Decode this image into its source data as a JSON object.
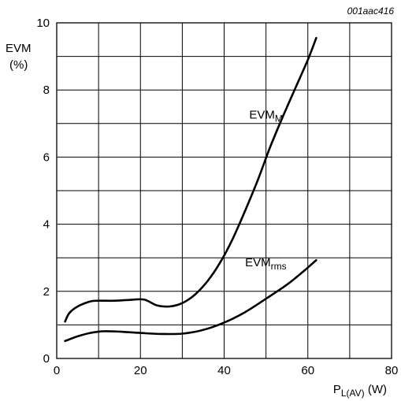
{
  "figure_code": "001aac416",
  "chart_data": {
    "type": "line",
    "xlabel": {
      "main": "P",
      "sub": "L(AV)",
      "unit": " (W)"
    },
    "ylabel": {
      "line1": "EVM",
      "line2": "(%)"
    },
    "xlim": [
      0,
      80
    ],
    "ylim": [
      0,
      10
    ],
    "x_ticks": [
      0,
      20,
      40,
      60,
      80
    ],
    "y_ticks": [
      0,
      2,
      4,
      6,
      8,
      10
    ],
    "x_grid_step": 10,
    "y_grid_step": 1,
    "grid": true,
    "series": [
      {
        "name": "EVM",
        "name_sub": "M",
        "points": [
          [
            2,
            1.1
          ],
          [
            3,
            1.35
          ],
          [
            5,
            1.55
          ],
          [
            8,
            1.7
          ],
          [
            10,
            1.72
          ],
          [
            14,
            1.72
          ],
          [
            18,
            1.75
          ],
          [
            21,
            1.75
          ],
          [
            24,
            1.58
          ],
          [
            27,
            1.55
          ],
          [
            30,
            1.65
          ],
          [
            33,
            1.9
          ],
          [
            36,
            2.3
          ],
          [
            39,
            2.85
          ],
          [
            42,
            3.55
          ],
          [
            45,
            4.4
          ],
          [
            48,
            5.3
          ],
          [
            51,
            6.3
          ],
          [
            54,
            7.2
          ],
          [
            57,
            8.05
          ],
          [
            60,
            8.9
          ],
          [
            62,
            9.55
          ]
        ]
      },
      {
        "name": "EVM",
        "name_sub": "rms",
        "points": [
          [
            2,
            0.52
          ],
          [
            5,
            0.66
          ],
          [
            8,
            0.76
          ],
          [
            11,
            0.81
          ],
          [
            15,
            0.8
          ],
          [
            20,
            0.76
          ],
          [
            25,
            0.73
          ],
          [
            30,
            0.74
          ],
          [
            35,
            0.85
          ],
          [
            40,
            1.07
          ],
          [
            45,
            1.38
          ],
          [
            50,
            1.78
          ],
          [
            55,
            2.2
          ],
          [
            59,
            2.6
          ],
          [
            62,
            2.93
          ]
        ]
      }
    ],
    "annotations": [
      {
        "series_index": 0,
        "at": [
          46,
          7.15
        ]
      },
      {
        "series_index": 1,
        "at": [
          45,
          2.75
        ]
      }
    ]
  }
}
